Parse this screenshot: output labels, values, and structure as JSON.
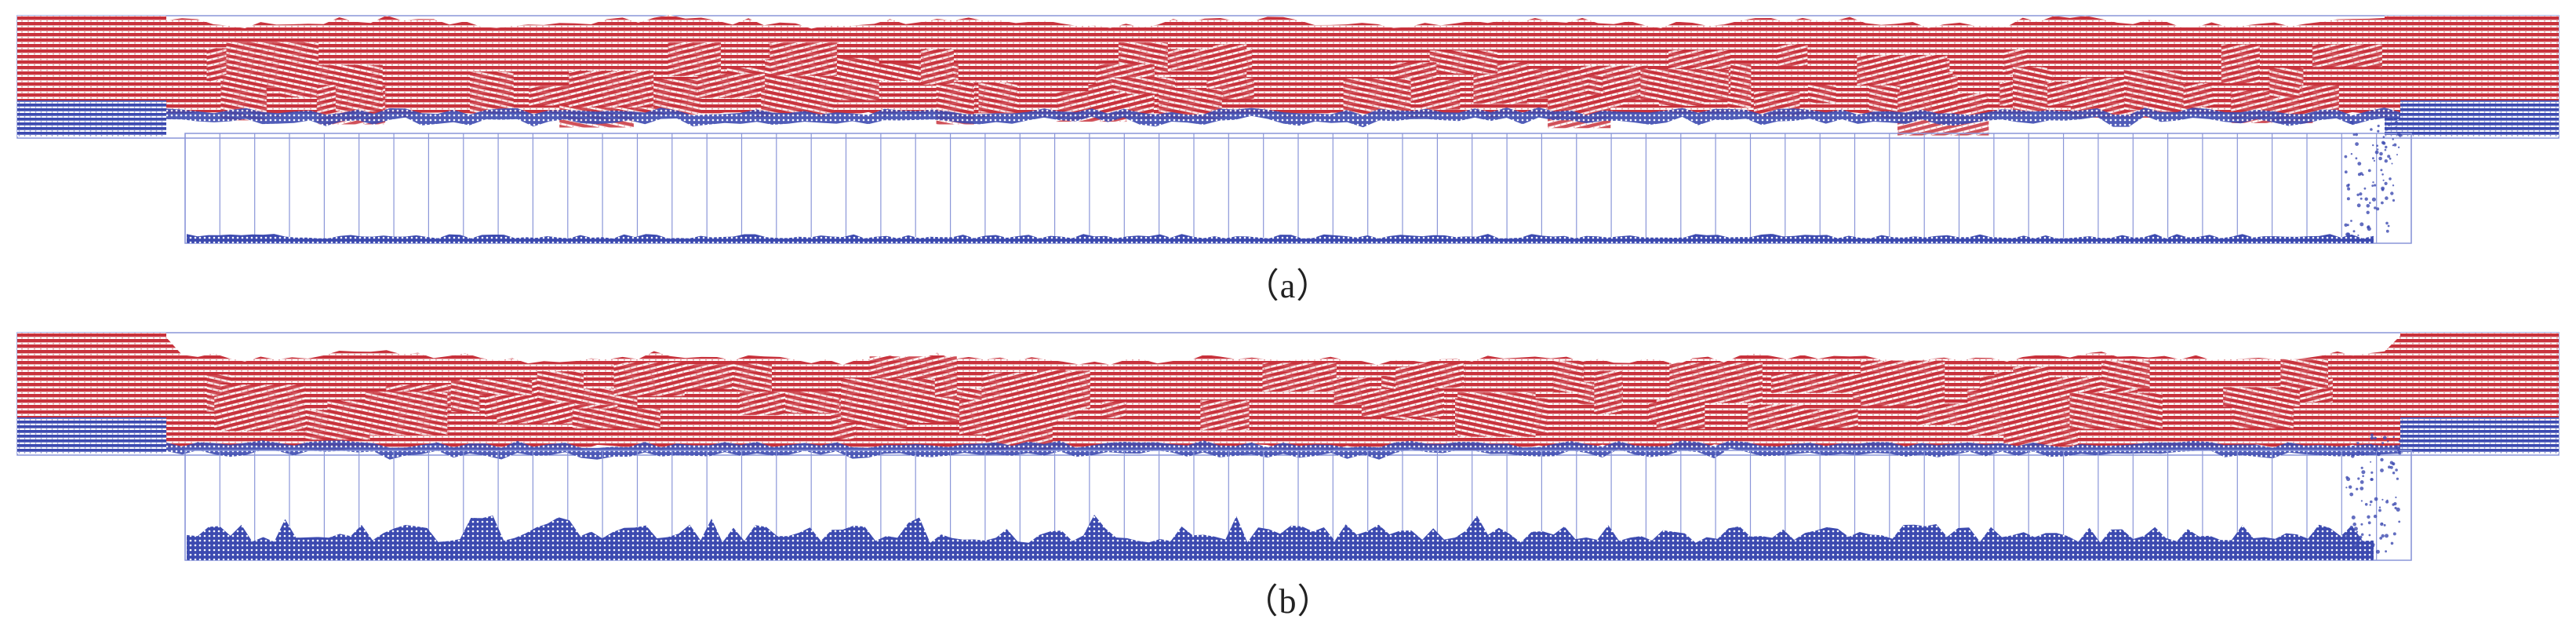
{
  "figure": {
    "panels": [
      {
        "id": "a",
        "caption": "（a）",
        "state": "initial"
      },
      {
        "id": "b",
        "caption": "（b）",
        "state": "collapsed"
      }
    ],
    "colors": {
      "red_particles": "#c8323c",
      "blue_particles": "#3c4ab0",
      "boundary_lines": "#8a96d8",
      "background": "#ffffff"
    }
  }
}
